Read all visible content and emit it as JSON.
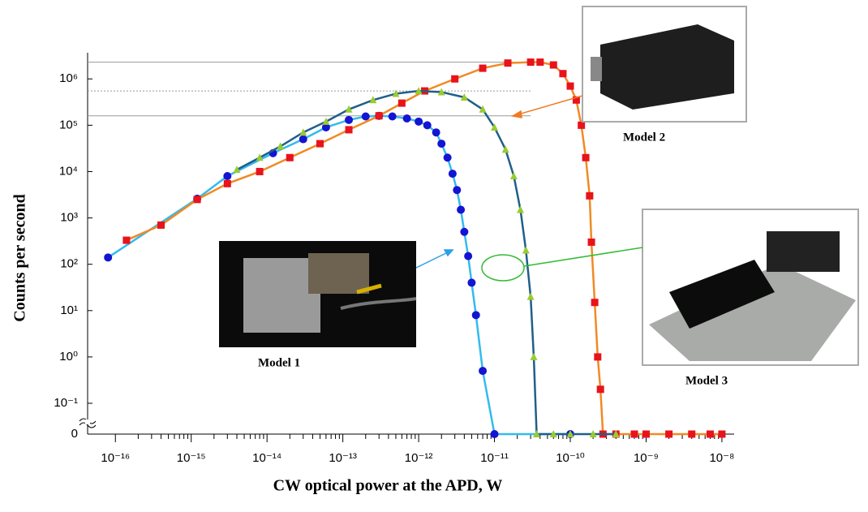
{
  "chart_data": {
    "type": "line",
    "log_x": true,
    "log_y": true,
    "x_label": "CW optical power at the APD, W",
    "y_label": "Counts per second",
    "xlim": [
      4.3e-17,
      1.45e-08
    ],
    "ylim": [
      0.1,
      3000000
    ],
    "xticks": [
      {
        "value": 1e-16,
        "label": "10⁻¹⁶"
      },
      {
        "value": 1e-15,
        "label": "10⁻¹⁵"
      },
      {
        "value": 1e-14,
        "label": "10⁻¹⁴"
      },
      {
        "value": 1e-13,
        "label": "10⁻¹³"
      },
      {
        "value": 1e-12,
        "label": "10⁻¹²"
      },
      {
        "value": 1e-11,
        "label": "10⁻¹¹"
      },
      {
        "value": 1e-10,
        "label": "10⁻¹⁰"
      },
      {
        "value": 1e-09,
        "label": "10⁻⁹"
      },
      {
        "value": 1e-08,
        "label": "10⁻⁸"
      }
    ],
    "yticks": [
      0,
      {
        "value": 0.1,
        "label": "10⁻¹"
      },
      {
        "value": 1,
        "label": "10⁰"
      },
      {
        "value": 10,
        "label": "10¹"
      },
      {
        "value": 100,
        "label": "10²"
      },
      {
        "value": 1000,
        "label": "10³"
      },
      {
        "value": 10000,
        "label": "10⁴"
      },
      {
        "value": 100000,
        "label": "10⁵"
      },
      {
        "value": 1000000,
        "label": "10⁶"
      }
    ],
    "reference_lines": [
      {
        "value": 2300000,
        "dashed": false
      },
      {
        "value": 550000,
        "dashed": true
      },
      {
        "value": 160000,
        "dashed": false
      }
    ],
    "series": [
      {
        "name": "Model 1",
        "color": "#1414d2",
        "line_color": "#33bbee",
        "marker": "circle",
        "x": [
          8e-17,
          1.2e-15,
          3e-15,
          1.2e-14,
          3e-14,
          6e-14,
          1.2e-13,
          2e-13,
          3e-13,
          4.5e-13,
          7e-13,
          1e-12,
          1.3e-12,
          1.7e-12,
          2e-12,
          2.4e-12,
          2.8e-12,
          3.2e-12,
          3.6e-12,
          4e-12,
          4.5e-12,
          5e-12,
          5.7e-12,
          7e-12,
          1e-11,
          1e-10
        ],
        "values": [
          140,
          2600,
          8000,
          25000,
          50000,
          90000,
          130000,
          155000,
          160000,
          155000,
          140000,
          120000,
          100000,
          70000,
          40000,
          20000,
          9000,
          4000,
          1500,
          500,
          150,
          40,
          8,
          0.5,
          0,
          0
        ]
      },
      {
        "name": "Model 2",
        "color": "#e8131b",
        "line_color": "#f08a24",
        "marker": "square",
        "x": [
          1.4e-16,
          4e-16,
          1.2e-15,
          3e-15,
          8e-15,
          2e-14,
          5e-14,
          1.2e-13,
          3e-13,
          6e-13,
          1.2e-12,
          3e-12,
          7e-12,
          1.5e-11,
          3e-11,
          4e-11,
          6e-11,
          8e-11,
          1e-10,
          1.2e-10,
          1.4e-10,
          1.6e-10,
          1.8e-10,
          1.9e-10,
          2.1e-10,
          2.3e-10,
          2.5e-10,
          2.7e-10,
          4e-10,
          7e-10,
          1e-09,
          2e-09,
          4e-09,
          7e-09,
          1e-08
        ],
        "values": [
          330,
          700,
          2500,
          5500,
          10000,
          20000,
          40000,
          80000,
          160000,
          300000,
          550000,
          1000000,
          1700000,
          2200000,
          2300000,
          2300000,
          2000000,
          1300000,
          700000,
          350000,
          100000,
          20000,
          3000,
          300,
          15,
          1,
          0.2,
          0,
          0,
          0,
          0,
          0,
          0,
          0,
          0
        ]
      },
      {
        "name": "Model 3",
        "color": "#9acb2e",
        "line_color": "#1f5f8a",
        "marker": "triangle",
        "x": [
          4e-15,
          8e-15,
          1.5e-14,
          3e-14,
          6e-14,
          1.2e-13,
          2.5e-13,
          5e-13,
          1e-12,
          2e-12,
          4e-12,
          7e-12,
          1e-11,
          1.4e-11,
          1.8e-11,
          2.2e-11,
          2.6e-11,
          3e-11,
          3.3e-11,
          3.6e-11,
          6e-11,
          1e-10,
          2e-10,
          4e-10
        ],
        "values": [
          11000,
          20000,
          35000,
          70000,
          120000,
          220000,
          350000,
          480000,
          550000,
          520000,
          400000,
          220000,
          90000,
          30000,
          8000,
          1500,
          200,
          20,
          1,
          0,
          0,
          0,
          0,
          0
        ]
      }
    ]
  }
}
